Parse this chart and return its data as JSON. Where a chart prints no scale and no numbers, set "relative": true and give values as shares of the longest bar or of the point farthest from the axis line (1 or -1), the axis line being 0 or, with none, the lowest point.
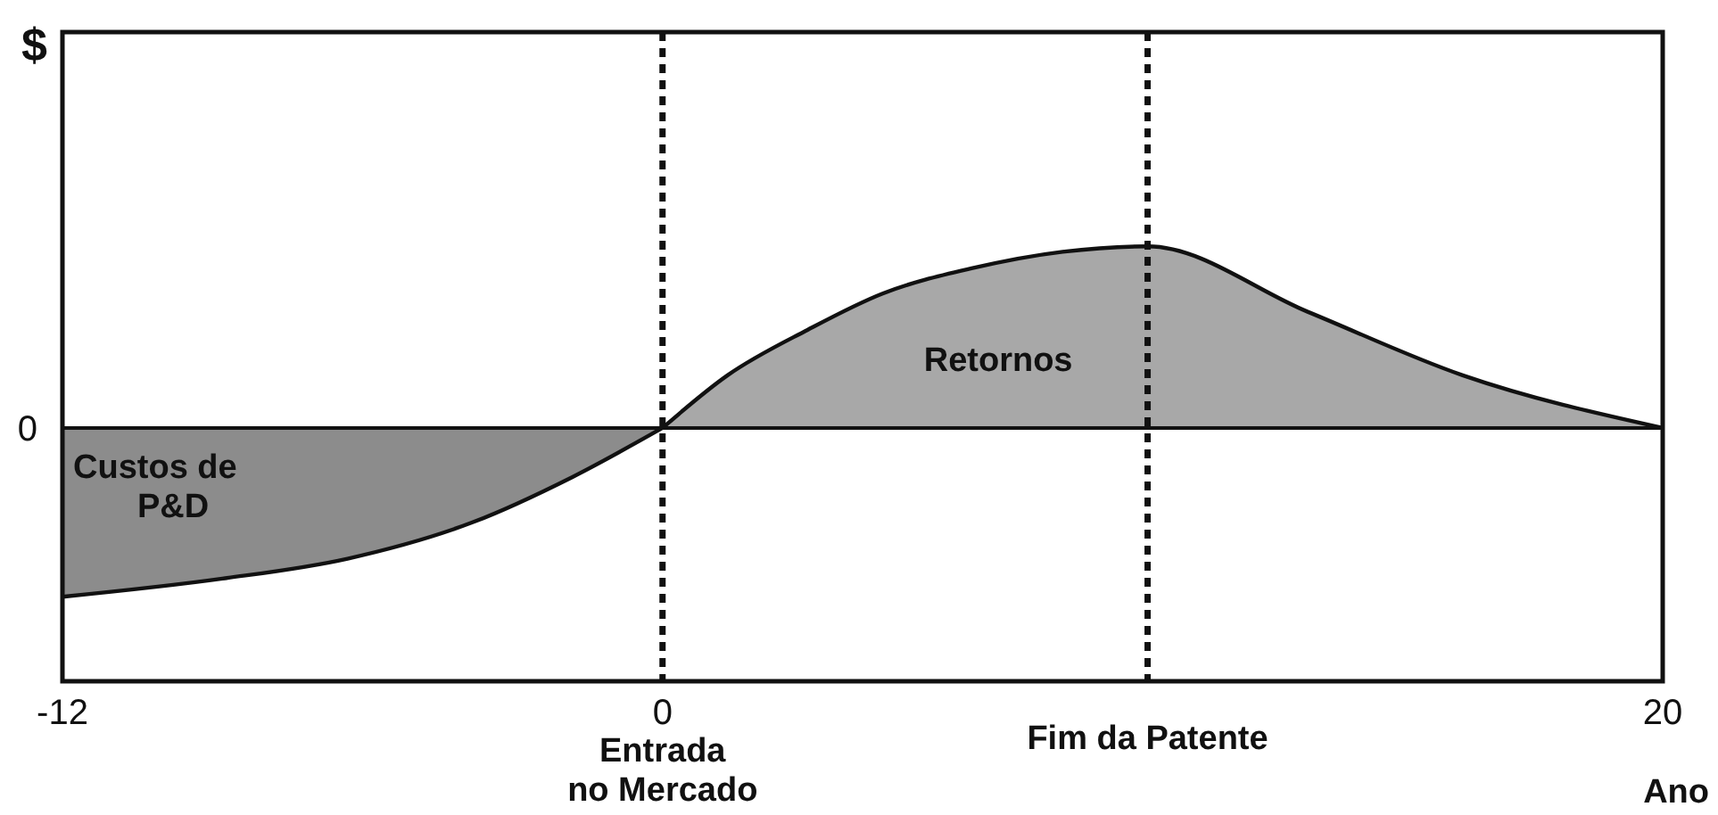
{
  "chart_data": {
    "type": "area",
    "relative": true,
    "xlabel": "Ano",
    "ylabel": "$",
    "xlim": [
      -12,
      20
    ],
    "xticks": [
      -12,
      0,
      20
    ],
    "annotations": [
      "0"
    ],
    "series": [
      {
        "name": "Custos de P&D",
        "color": "#8c8c8c",
        "x": [
          -12,
          -8.8,
          -6.3,
          -3.8,
          -1.8,
          0
        ],
        "values": [
          -0.93,
          -0.83,
          -0.72,
          -0.52,
          -0.27,
          0
        ]
      },
      {
        "name": "Retornos",
        "color": "#a8a8a8",
        "x": [
          0,
          1.3,
          2.9,
          4.4,
          6.2,
          8,
          9.7,
          12.9,
          16,
          20
        ],
        "values": [
          0,
          0.29,
          0.54,
          0.74,
          0.88,
          0.97,
          1,
          0.64,
          0.29,
          0
        ]
      }
    ],
    "ref_lines": [
      {
        "axis": "x",
        "value": 0,
        "label": "Entrada no Mercado",
        "line_style": "dotted"
      },
      {
        "axis": "x",
        "value": 9.7,
        "label": "Fim da Patente",
        "line_style": "dotted"
      }
    ]
  }
}
